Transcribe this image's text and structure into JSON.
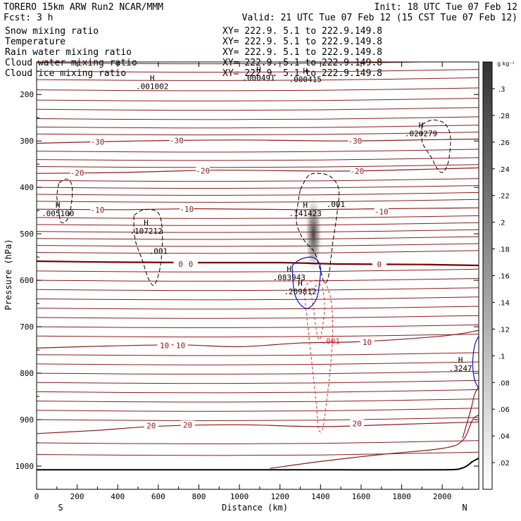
{
  "header": {
    "model": "TORERO  15km ARW   Run2    NCAR/MMM",
    "init": "Init: 18 UTC Tue 07 Feb 12",
    "fcst": "Fcst:    3 h",
    "valid": "Valid: 21 UTC Tue 07 Feb 12 (15 CST Tue 07 Feb 12)"
  },
  "legend": [
    {
      "label": "Snow mixing ratio",
      "xy": "XY= 222.9.  5.1 to 222.9.149.8",
      "color": "#000000"
    },
    {
      "label": "Temperature",
      "xy": "XY= 222.9.  5.1 to 222.9.149.8",
      "color": "#cc0000"
    },
    {
      "label": "Rain water mixing ratio",
      "xy": "XY= 222.9.  5.1 to 222.9.149.8",
      "color": "#cc0000"
    },
    {
      "label": "Cloud water mixing ratio",
      "xy": "XY= 222.9.  5.1 to 222.9.149.8",
      "color": "#0000aa"
    },
    {
      "label": "Cloud ice mixing ratio",
      "xy": "XY= 222.9.  5.1 to 222.9.149.8",
      "color": "#000000"
    }
  ],
  "colors": {
    "temperature": "#8b1a1a",
    "freezing": "#7a0000",
    "rain": "#e03030",
    "cloud_water": "#1010c0",
    "ice": "#000000",
    "ground": "#000000"
  },
  "chart_data": {
    "type": "cross-section",
    "xlabel": "Distance (km)",
    "ylabel": "Pressure (hPa)",
    "xlim": [
      0,
      2180
    ],
    "ylim": [
      1050,
      130
    ],
    "xticks": [
      0,
      200,
      400,
      600,
      800,
      1000,
      1200,
      1400,
      1600,
      1800,
      2000
    ],
    "xtick_labels": [
      "0",
      "200",
      "400",
      "600",
      "800",
      "1000",
      "1200",
      "1400",
      "1600",
      "1800",
      "2000"
    ],
    "yticks": [
      200,
      300,
      400,
      500,
      600,
      700,
      800,
      900,
      1000
    ],
    "ytick_labels": [
      "200",
      "300",
      "400",
      "500",
      "600",
      "700",
      "800",
      "900",
      "1000"
    ],
    "endpoints": {
      "left": "S",
      "right": "N"
    },
    "colorbar": {
      "units": "g kg⁻¹",
      "ticks": [
        ".3",
        ".28",
        ".26",
        ".24",
        ".22",
        ".2",
        ".18",
        ".16",
        ".14",
        ".12",
        ".1",
        ".08",
        ".06",
        ".04",
        ".02"
      ],
      "tick_values": [
        0.3,
        0.28,
        0.26,
        0.24,
        0.22,
        0.2,
        0.18,
        0.16,
        0.14,
        0.12,
        0.1,
        0.08,
        0.06,
        0.04,
        0.02
      ],
      "min": 0,
      "max": 0.32
    },
    "isotherms": [
      {
        "level": -30,
        "points": [
          [
            0,
            305
          ],
          [
            500,
            300
          ],
          [
            1000,
            298
          ],
          [
            1500,
            300
          ],
          [
            2000,
            297
          ],
          [
            2180,
            296
          ]
        ],
        "labels": [
          {
            "text": "-30",
            "at": [
              300,
              302
            ]
          },
          {
            "text": "-30",
            "at": [
              690,
              299
            ]
          },
          {
            "text": "-30",
            "at": [
              1570,
              300
            ]
          }
        ]
      },
      {
        "level": -20,
        "points": [
          [
            0,
            370
          ],
          [
            400,
            368
          ],
          [
            900,
            363
          ],
          [
            1500,
            365
          ],
          [
            2000,
            360
          ],
          [
            2180,
            358
          ]
        ],
        "labels": [
          {
            "text": "-20",
            "at": [
              200,
              369
            ]
          },
          {
            "text": "-20",
            "at": [
              820,
              364
            ]
          },
          {
            "text": "-20",
            "at": [
              1580,
              365
            ]
          }
        ]
      },
      {
        "level": -10,
        "points": [
          [
            0,
            447
          ],
          [
            400,
            448
          ],
          [
            800,
            446
          ],
          [
            1300,
            448
          ],
          [
            1700,
            446
          ],
          [
            2180,
            444
          ]
        ],
        "labels": [
          {
            "text": "-10",
            "at": [
              300,
              448
            ]
          },
          {
            "text": "-10",
            "at": [
              740,
              447
            ]
          },
          {
            "text": "-10",
            "at": [
              1700,
              452
            ]
          }
        ]
      },
      {
        "level": 0,
        "points": [
          [
            0,
            559
          ],
          [
            400,
            561
          ],
          [
            800,
            562
          ],
          [
            1200,
            562
          ],
          [
            1500,
            565
          ],
          [
            1900,
            566
          ],
          [
            2180,
            568
          ]
        ],
        "labels": [
          {
            "text": "0",
            "at": [
              710,
              565
            ]
          },
          {
            "text": "0",
            "at": [
              760,
              565
            ]
          },
          {
            "text": "0",
            "at": [
              1690,
              566
            ]
          }
        ],
        "bold": true
      },
      {
        "level": 10,
        "points": [
          [
            0,
            746
          ],
          [
            300,
            742
          ],
          [
            700,
            739
          ],
          [
            1000,
            743
          ],
          [
            1300,
            735
          ],
          [
            1600,
            732
          ],
          [
            2000,
            720
          ],
          [
            2180,
            708
          ]
        ],
        "labels": [
          {
            "text": "10",
            "at": [
              630,
              740
            ]
          },
          {
            "text": "10",
            "at": [
              710,
              740
            ]
          },
          {
            "text": "10",
            "at": [
              1630,
              733
            ]
          }
        ]
      },
      {
        "level": 20,
        "points": [
          [
            0,
            930
          ],
          [
            300,
            923
          ],
          [
            600,
            914
          ],
          [
            1000,
            911
          ],
          [
            1400,
            915
          ],
          [
            1800,
            910
          ],
          [
            2180,
            905
          ]
        ],
        "labels": [
          {
            "text": "20",
            "at": [
              565,
              913
            ]
          },
          {
            "text": "20",
            "at": [
              745,
              911
            ]
          },
          {
            "text": "20",
            "at": [
              1580,
              908
            ]
          }
        ]
      }
    ],
    "snow_contours": [
      {
        "value": ".001",
        "points": [
          [
            1300,
            405
          ],
          [
            1340,
            375
          ],
          [
            1390,
            370
          ],
          [
            1450,
            377
          ],
          [
            1490,
            405
          ],
          [
            1480,
            460
          ],
          [
            1460,
            520
          ],
          [
            1440,
            590
          ],
          [
            1420,
            605
          ],
          [
            1400,
            580
          ],
          [
            1370,
            540
          ],
          [
            1330,
            520
          ],
          [
            1300,
            500
          ],
          [
            1280,
            470
          ],
          [
            1290,
            430
          ],
          [
            1300,
            405
          ]
        ],
        "label_at": [
          1475,
          442
        ]
      },
      {
        "value": ".001",
        "points": [
          [
            480,
            460
          ],
          [
            530,
            448
          ],
          [
            600,
            455
          ],
          [
            620,
            500
          ],
          [
            610,
            570
          ],
          [
            580,
            610
          ],
          [
            550,
            595
          ],
          [
            520,
            555
          ],
          [
            490,
            520
          ],
          [
            480,
            490
          ],
          [
            480,
            460
          ]
        ],
        "label_at": [
          600,
          543
        ]
      },
      {
        "value": "",
        "points": [
          [
            110,
            390
          ],
          [
            150,
            382
          ],
          [
            175,
            398
          ],
          [
            170,
            440
          ],
          [
            150,
            470
          ],
          [
            120,
            475
          ],
          [
            110,
            450
          ],
          [
            100,
            420
          ],
          [
            110,
            390
          ]
        ],
        "label_at": null
      },
      {
        "value": "",
        "points": [
          [
            1900,
            265
          ],
          [
            1950,
            255
          ],
          [
            2010,
            262
          ],
          [
            2040,
            290
          ],
          [
            2030,
            345
          ],
          [
            2000,
            368
          ],
          [
            1970,
            356
          ],
          [
            1950,
            338
          ],
          [
            1920,
            318
          ],
          [
            1900,
            300
          ],
          [
            1900,
            265
          ]
        ],
        "label_at": null
      }
    ],
    "rain_contours": [
      {
        "value": ".001",
        "points": [
          [
            1320,
            620
          ],
          [
            1340,
            605
          ],
          [
            1380,
            600
          ],
          [
            1420,
            605
          ],
          [
            1450,
            640
          ],
          [
            1460,
            700
          ],
          [
            1450,
            780
          ],
          [
            1430,
            860
          ],
          [
            1410,
            920
          ],
          [
            1390,
            920
          ],
          [
            1380,
            870
          ],
          [
            1360,
            790
          ],
          [
            1340,
            710
          ],
          [
            1325,
            650
          ],
          [
            1320,
            620
          ]
        ],
        "label_at": [
          1450,
          737
        ]
      },
      {
        "value": "",
        "points": [
          [
            1350,
            620
          ],
          [
            1400,
            610
          ],
          [
            1420,
            650
          ],
          [
            1410,
            700
          ],
          [
            1395,
            728
          ],
          [
            1380,
            710
          ],
          [
            1365,
            660
          ],
          [
            1350,
            620
          ]
        ],
        "label_at": null
      }
    ],
    "cloud_water_contours": [
      {
        "points": [
          [
            1260,
            568
          ],
          [
            1300,
            555
          ],
          [
            1350,
            550
          ],
          [
            1380,
            555
          ],
          [
            1400,
            572
          ],
          [
            1395,
            605
          ],
          [
            1380,
            640
          ],
          [
            1340,
            660
          ],
          [
            1300,
            652
          ],
          [
            1270,
            625
          ],
          [
            1260,
            568
          ]
        ]
      },
      {
        "points": [
          [
            2180,
            720
          ],
          [
            2160,
            740
          ],
          [
            2150,
            780
          ],
          [
            2160,
            815
          ],
          [
            2180,
            832
          ]
        ]
      }
    ],
    "maxima": [
      {
        "label": "H",
        "value": ".001002",
        "at": [
          570,
          188
        ]
      },
      {
        "label": "H",
        "value": ".000491",
        "at": [
          1095,
          170
        ]
      },
      {
        "label": "H",
        "value": ".000415",
        "at": [
          1325,
          173
        ]
      },
      {
        "label": "H",
        "value": ".020279",
        "at": [
          1895,
          290
        ]
      },
      {
        "label": "H",
        "value": ".005100",
        "at": [
          105,
          462
        ]
      },
      {
        "label": "H",
        "value": ".107212",
        "at": [
          540,
          500
        ]
      },
      {
        "label": "H",
        "value": ".141423",
        "at": [
          1325,
          462
        ]
      },
      {
        "label": "H",
        "value": ".083943",
        "at": [
          1245,
          600
        ]
      },
      {
        "label": "H",
        "value": ".209812",
        "at": [
          1300,
          630
        ]
      },
      {
        "label": "H",
        "value": ".3247",
        "at": [
          2090,
          795
        ]
      }
    ],
    "ice_shading": {
      "center": [
        1365,
        500
      ],
      "peak": 0.3,
      "spread_km": 45,
      "spread_hpa": 90
    },
    "ground": {
      "points": [
        [
          0,
          1008
        ],
        [
          1100,
          1008
        ],
        [
          1500,
          1008
        ],
        [
          2000,
          1008
        ],
        [
          2100,
          1004
        ],
        [
          2150,
          990
        ],
        [
          2180,
          983
        ]
      ]
    },
    "warm_isotherms": [
      {
        "points": [
          [
            1150,
            1005
          ],
          [
            1400,
            990
          ],
          [
            1700,
            975
          ],
          [
            2000,
            962
          ],
          [
            2100,
            945
          ],
          [
            2150,
            900
          ],
          [
            2180,
            890
          ]
        ]
      },
      {
        "points": [
          [
            2100,
            940
          ],
          [
            2140,
            880
          ],
          [
            2160,
            845
          ],
          [
            2180,
            830
          ]
        ]
      }
    ]
  }
}
